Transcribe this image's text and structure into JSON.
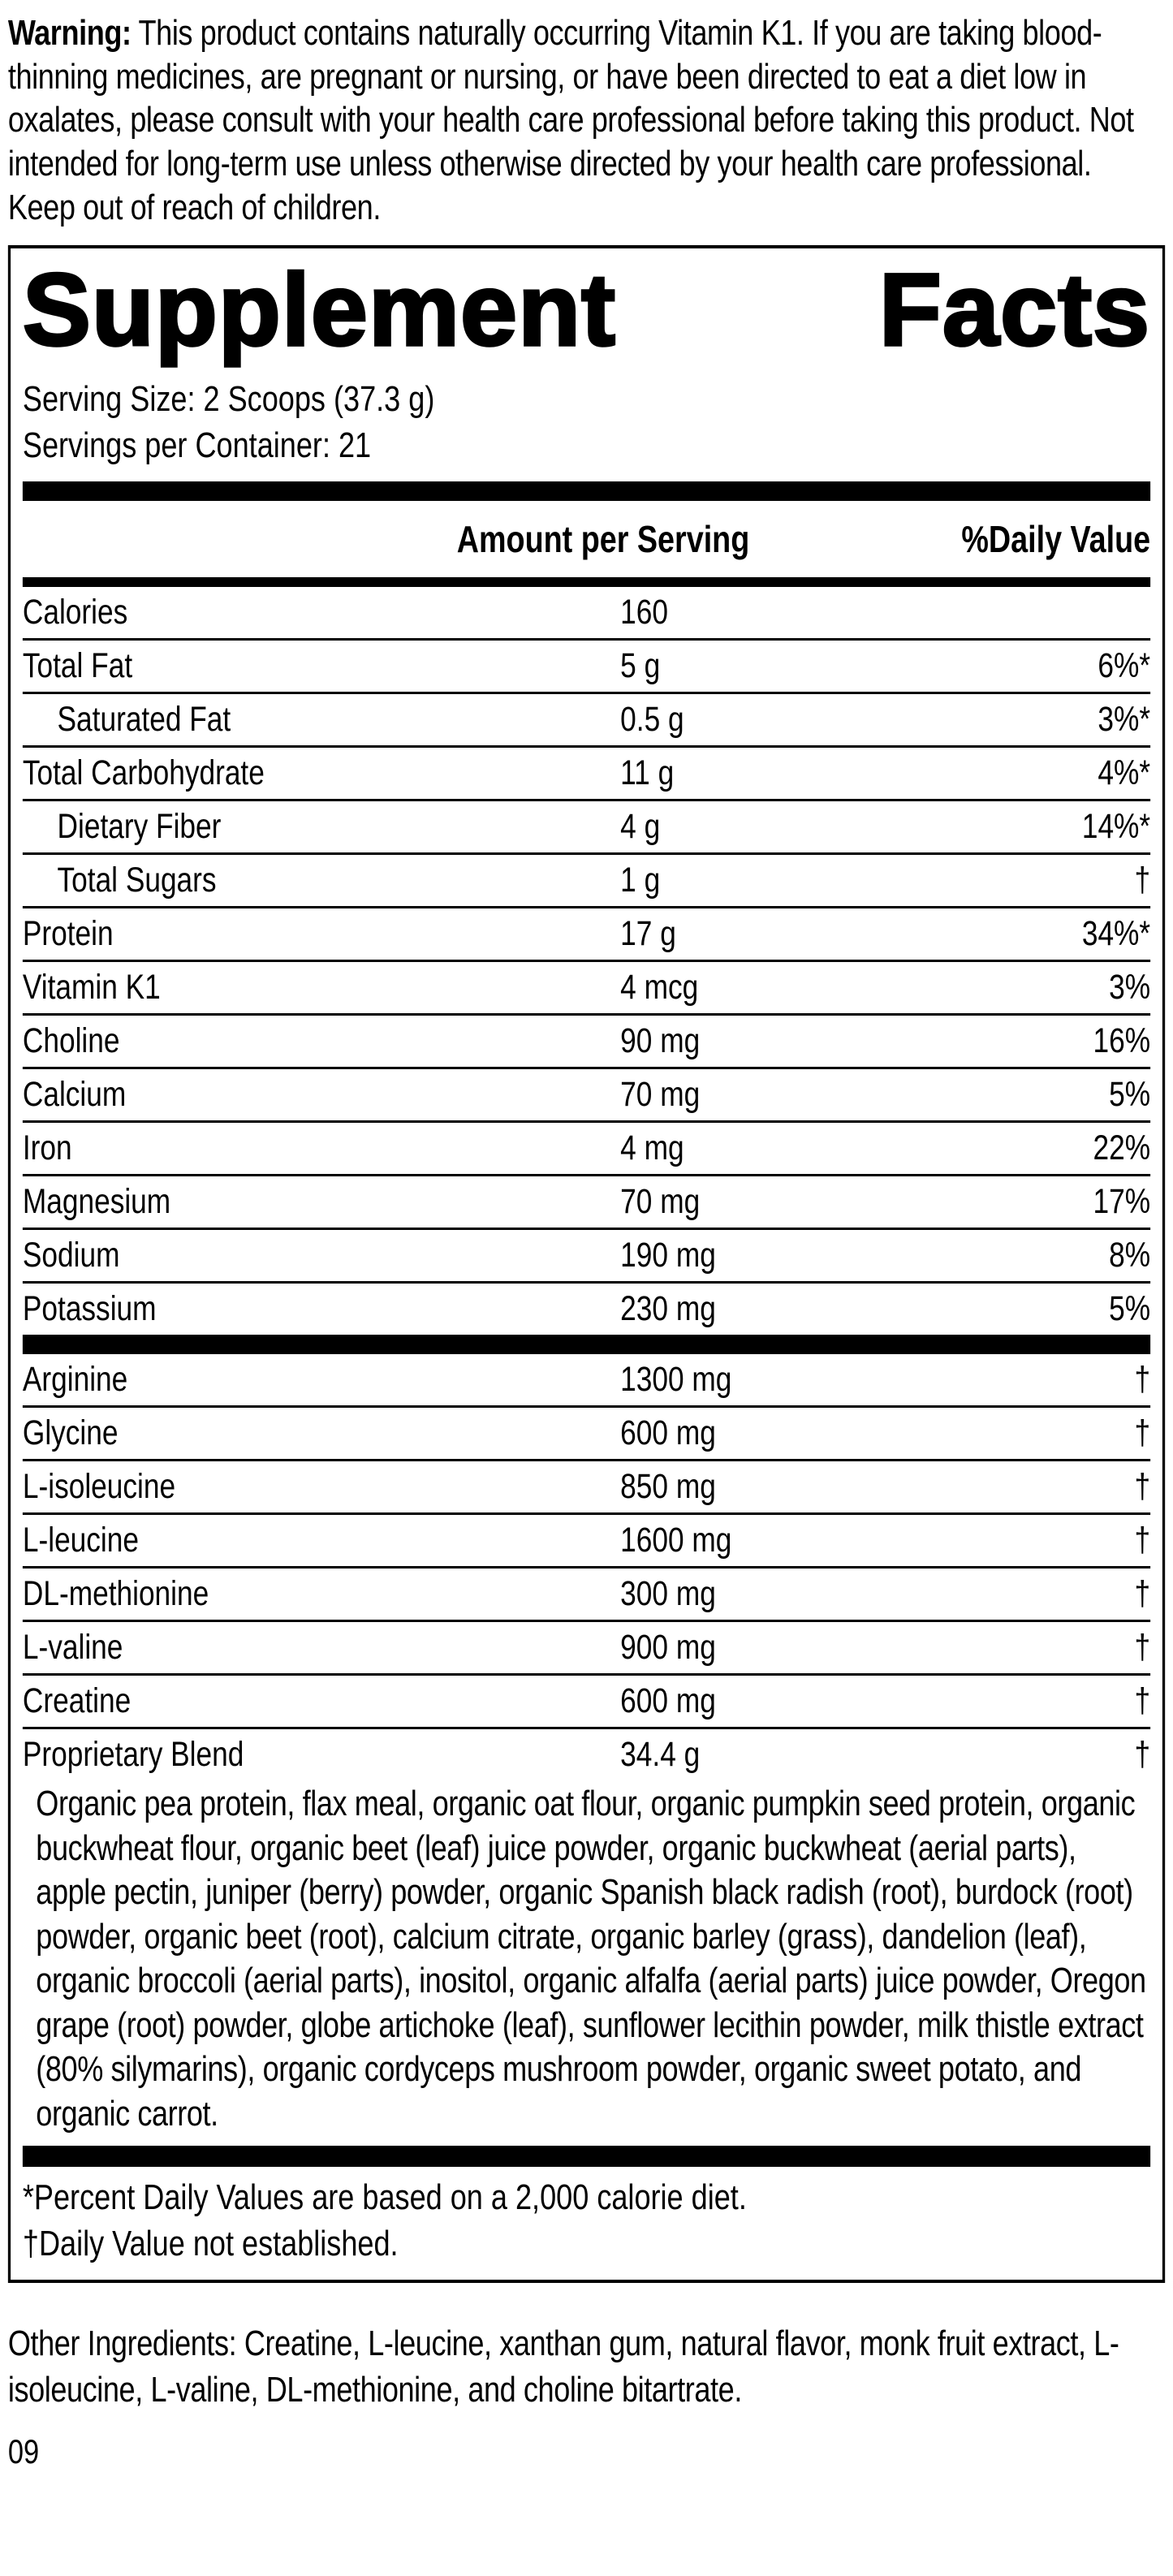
{
  "warning": {
    "label": "Warning:",
    "text": "This product contains naturally occurring Vitamin K1. If you are taking blood-thinning medicines, are pregnant or nursing, or have been directed to eat a diet low in oxalates, please consult with your health care professional before taking this product. Not intended for long-term use unless otherwise directed by your health care professional. Keep out of reach of children."
  },
  "panel": {
    "title_left": "Supplement",
    "title_right": "Facts",
    "serving_size": "Serving Size: 2 Scoops (37.3 g)",
    "servings_per_container": "Servings per Container: 21",
    "header": {
      "amount": "Amount per Serving",
      "dv": "%Daily Value"
    },
    "rows": [
      {
        "name": "Calories",
        "amount": "160",
        "dv": "",
        "indent": false
      },
      {
        "name": "Total Fat",
        "amount": "5 g",
        "dv": "6%*",
        "indent": false
      },
      {
        "name": "Saturated Fat",
        "amount": "0.5 g",
        "dv": "3%*",
        "indent": true
      },
      {
        "name": "Total Carbohydrate",
        "amount": "11 g",
        "dv": "4%*",
        "indent": false
      },
      {
        "name": "Dietary Fiber",
        "amount": "4 g",
        "dv": "14%*",
        "indent": true
      },
      {
        "name": "Total Sugars",
        "amount": "1 g",
        "dv": "†",
        "indent": true
      },
      {
        "name": "Protein",
        "amount": "17 g",
        "dv": "34%*",
        "indent": false
      },
      {
        "name": "Vitamin K1",
        "amount": "4 mcg",
        "dv": "3%",
        "indent": false
      },
      {
        "name": "Choline",
        "amount": "90 mg",
        "dv": "16%",
        "indent": false
      },
      {
        "name": "Calcium",
        "amount": "70 mg",
        "dv": "5%",
        "indent": false
      },
      {
        "name": "Iron",
        "amount": "4 mg",
        "dv": "22%",
        "indent": false
      },
      {
        "name": "Magnesium",
        "amount": "70 mg",
        "dv": "17%",
        "indent": false
      },
      {
        "name": "Sodium",
        "amount": "190 mg",
        "dv": "8%",
        "indent": false
      },
      {
        "name": "Potassium",
        "amount": "230 mg",
        "dv": "5%",
        "indent": false
      }
    ],
    "amino_rows": [
      {
        "name": "Arginine",
        "amount": "1300 mg",
        "dv": "†",
        "indent": false
      },
      {
        "name": "Glycine",
        "amount": "600 mg",
        "dv": "†",
        "indent": false
      },
      {
        "name": "L-isoleucine",
        "amount": "850 mg",
        "dv": "†",
        "indent": false
      },
      {
        "name": "L-leucine",
        "amount": "1600 mg",
        "dv": "†",
        "indent": false
      },
      {
        "name": "DL-methionine",
        "amount": "300 mg",
        "dv": "†",
        "indent": false
      },
      {
        "name": "L-valine",
        "amount": "900 mg",
        "dv": "†",
        "indent": false
      },
      {
        "name": "Creatine",
        "amount": "600 mg",
        "dv": "†",
        "indent": false
      },
      {
        "name": "Proprietary Blend",
        "amount": "34.4 g",
        "dv": "†",
        "indent": false
      }
    ],
    "blend_description": "Organic pea protein, flax meal, organic oat flour, organic pumpkin seed protein, organic buckwheat flour, organic beet (leaf) juice powder, organic buckwheat (aerial parts), apple pectin, juniper (berry) powder, organic Spanish black radish (root), burdock (root) powder, organic beet (root), calcium citrate, organic barley (grass), dandelion (leaf), organic broccoli (aerial parts), inositol, organic alfalfa (aerial parts) juice powder, Oregon grape (root) powder, globe artichoke (leaf), sunflower lecithin powder, milk thistle extract (80% silymarins), organic cordyceps mushroom powder, organic sweet potato, and organic carrot.",
    "footnotes": [
      "*Percent Daily Values are based on a 2,000 calorie diet.",
      "†Daily Value not established."
    ]
  },
  "other_ingredients": "Other Ingredients: Creatine, L-leucine, xanthan gum, natural flavor, monk fruit extract, L-isoleucine, L-valine, DL-methionine, and choline bitartrate.",
  "page_number": "09"
}
